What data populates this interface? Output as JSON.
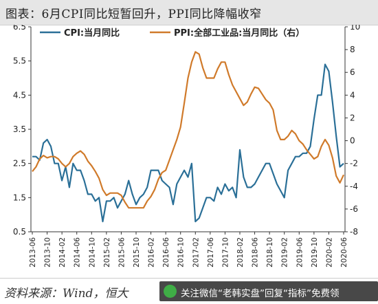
{
  "title": "图表：6月CPI同比短暂回升，PPI同比降幅收窄",
  "source": "资料来源：Wind，恒大",
  "watermark": {
    "text": "关注微信“老韩实盘”回复“指标”免费领",
    "icon": "wechat-icon"
  },
  "colors": {
    "cpi": "#2a6f97",
    "ppi": "#d07a2a",
    "title_bg": "#e6e6e6"
  },
  "chart_data": {
    "type": "line",
    "title": "",
    "legend": "top",
    "grid": false,
    "x": [
      "2013-06",
      "2013-07",
      "2013-08",
      "2013-09",
      "2013-10",
      "2013-11",
      "2013-12",
      "2014-01",
      "2014-02",
      "2014-03",
      "2014-04",
      "2014-05",
      "2014-06",
      "2014-07",
      "2014-08",
      "2014-09",
      "2014-10",
      "2014-11",
      "2014-12",
      "2015-01",
      "2015-02",
      "2015-03",
      "2015-04",
      "2015-05",
      "2015-06",
      "2015-07",
      "2015-08",
      "2015-09",
      "2015-10",
      "2015-11",
      "2015-12",
      "2016-01",
      "2016-02",
      "2016-03",
      "2016-04",
      "2016-05",
      "2016-06",
      "2016-07",
      "2016-08",
      "2016-09",
      "2016-10",
      "2016-11",
      "2016-12",
      "2017-01",
      "2017-02",
      "2017-03",
      "2017-04",
      "2017-05",
      "2017-06",
      "2017-07",
      "2017-08",
      "2017-09",
      "2017-10",
      "2017-11",
      "2017-12",
      "2018-01",
      "2018-02",
      "2018-03",
      "2018-04",
      "2018-05",
      "2018-06",
      "2018-07",
      "2018-08",
      "2018-09",
      "2018-10",
      "2018-11",
      "2018-12",
      "2019-01",
      "2019-02",
      "2019-03",
      "2019-04",
      "2019-05",
      "2019-06",
      "2019-07",
      "2019-08",
      "2019-09",
      "2019-10",
      "2019-11",
      "2019-12",
      "2020-01",
      "2020-02",
      "2020-03",
      "2020-04",
      "2020-05",
      "2020-06"
    ],
    "x_tick_labels": [
      "2013-06",
      "2013-10",
      "2014-02",
      "2014-06",
      "2014-10",
      "2015-02",
      "2015-06",
      "2015-10",
      "2016-02",
      "2016-06",
      "2016-10",
      "2017-02",
      "2017-06",
      "2017-10",
      "2018-02",
      "2018-06",
      "2018-10",
      "2019-02",
      "2019-06",
      "2019-10",
      "2020-02",
      "2020-06"
    ],
    "y_left": {
      "ylim": [
        0.5,
        6.5
      ],
      "ticks": [
        "0.5",
        "1.5",
        "2.5",
        "3.5",
        "4.5",
        "5.5",
        "6.5"
      ]
    },
    "y_right": {
      "ylim": [
        -8,
        10
      ],
      "ticks": [
        "-8",
        "-6",
        "-4",
        "-2",
        "0",
        "2",
        "4",
        "6",
        "8",
        "10"
      ]
    },
    "series": [
      {
        "name": "CPI:当月同比",
        "axis": "left",
        "values": [
          2.7,
          2.7,
          2.6,
          3.1,
          3.2,
          3.0,
          2.5,
          2.5,
          2.0,
          2.4,
          1.8,
          2.5,
          2.3,
          2.3,
          2.0,
          1.6,
          1.6,
          1.4,
          1.5,
          0.8,
          1.4,
          1.4,
          1.5,
          1.2,
          1.4,
          1.6,
          2.0,
          1.6,
          1.3,
          1.5,
          1.6,
          1.8,
          2.3,
          2.3,
          2.3,
          2.0,
          1.9,
          1.8,
          1.3,
          1.9,
          2.1,
          2.3,
          2.1,
          2.5,
          0.8,
          0.9,
          1.2,
          1.5,
          1.5,
          1.4,
          1.8,
          1.6,
          1.9,
          1.7,
          1.8,
          1.5,
          2.9,
          2.1,
          1.8,
          1.8,
          1.9,
          2.1,
          2.3,
          2.5,
          2.5,
          2.2,
          1.9,
          1.7,
          1.5,
          2.3,
          2.5,
          2.7,
          2.7,
          2.8,
          2.8,
          3.0,
          3.8,
          4.5,
          4.5,
          5.4,
          5.2,
          4.3,
          3.3,
          2.4,
          2.5
        ]
      },
      {
        "name": "PPI:全部工业品:当月同比（右）",
        "axis": "right",
        "values": [
          -2.7,
          -2.3,
          -1.6,
          -1.3,
          -1.5,
          -1.4,
          -1.4,
          -1.6,
          -2.0,
          -2.3,
          -2.0,
          -1.4,
          -1.1,
          -0.9,
          -1.2,
          -1.8,
          -2.2,
          -2.7,
          -3.3,
          -4.3,
          -4.8,
          -4.6,
          -4.6,
          -4.6,
          -4.8,
          -5.4,
          -5.9,
          -5.9,
          -5.9,
          -5.9,
          -5.9,
          -5.3,
          -4.9,
          -4.3,
          -3.4,
          -2.8,
          -2.6,
          -1.7,
          -0.8,
          0.1,
          1.2,
          3.3,
          5.5,
          6.9,
          7.8,
          7.6,
          6.4,
          5.5,
          5.5,
          5.5,
          6.3,
          6.9,
          6.9,
          5.8,
          4.9,
          4.3,
          3.7,
          3.1,
          3.4,
          4.1,
          4.7,
          4.6,
          4.1,
          3.6,
          3.3,
          2.7,
          0.9,
          0.1,
          0.1,
          0.4,
          0.9,
          0.6,
          0.0,
          -0.3,
          -0.8,
          -1.2,
          -1.6,
          -1.4,
          -0.5,
          0.1,
          -0.4,
          -1.5,
          -3.1,
          -3.7,
          -3.0
        ]
      }
    ]
  }
}
